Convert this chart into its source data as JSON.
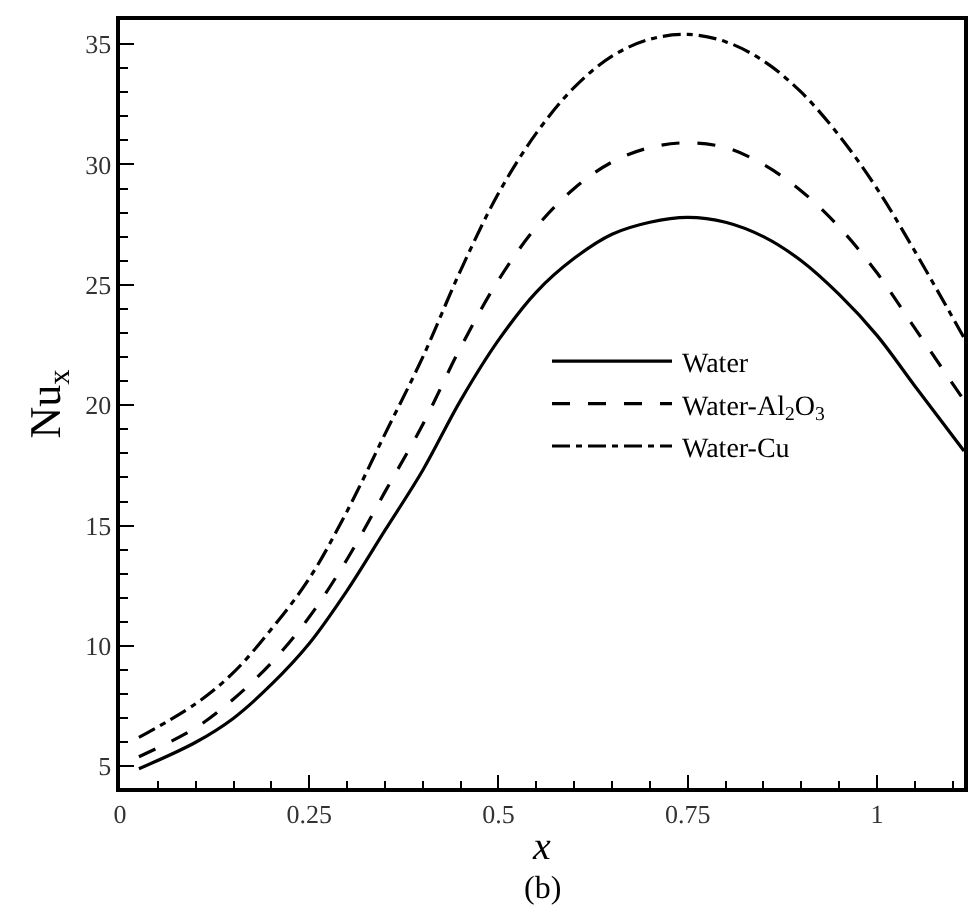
{
  "chart_data": {
    "type": "line",
    "xlabel": "x",
    "ylabel": "Nu$_{x}$",
    "x": [
      0.025,
      0.1,
      0.15,
      0.2,
      0.25,
      0.3,
      0.35,
      0.4,
      0.45,
      0.5,
      0.55,
      0.6,
      0.65,
      0.7,
      0.75,
      0.8,
      0.85,
      0.9,
      0.95,
      1.0,
      1.05,
      1.115
    ],
    "series": [
      {
        "name": "Water",
        "color": "#000000",
        "line_style": "solid",
        "values": [
          4.9,
          6.0,
          7.0,
          8.4,
          10.1,
          12.3,
          14.8,
          17.3,
          20.2,
          22.7,
          24.7,
          26.1,
          27.1,
          27.6,
          27.8,
          27.6,
          27.0,
          26.0,
          24.6,
          22.9,
          20.8,
          18.1
        ]
      },
      {
        "name": "Water-Al$_{2}$O$_{3}$",
        "color": "#000000",
        "line_style": "dashed",
        "values": [
          5.4,
          6.6,
          7.8,
          9.3,
          11.2,
          13.6,
          16.4,
          19.2,
          22.4,
          25.2,
          27.4,
          29.0,
          30.1,
          30.7,
          30.9,
          30.7,
          30.0,
          28.9,
          27.4,
          25.5,
          23.2,
          20.2
        ]
      },
      {
        "name": "Water-Cu",
        "color": "#000000",
        "line_style": "dashdot",
        "values": [
          6.2,
          7.6,
          8.9,
          10.7,
          12.8,
          15.6,
          18.8,
          22.0,
          25.6,
          28.8,
          31.3,
          33.2,
          34.5,
          35.2,
          35.4,
          35.1,
          34.3,
          33.0,
          31.2,
          29.0,
          26.4,
          22.8
        ]
      }
    ],
    "xlim": [
      0,
      1.115
    ],
    "ylim": [
      4.1,
      36
    ],
    "xticks": [
      0,
      0.25,
      0.5,
      0.75,
      1
    ],
    "yticks": [
      5,
      10,
      15,
      20,
      25,
      30,
      35
    ],
    "legend": "right",
    "marker": "none",
    "annotations": [
      "(b)"
    ]
  }
}
